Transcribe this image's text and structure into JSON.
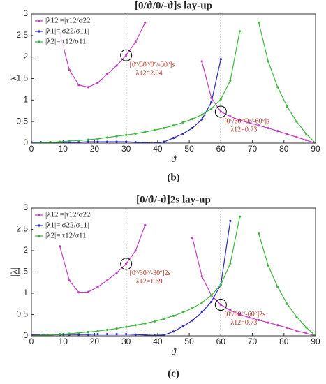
{
  "chart_data": [
    {
      "type": "line",
      "title": "[0/ϑ/0/-ϑ]s lay-up",
      "xlabel": "ϑ",
      "ylabel": "|λ|",
      "panel_label": "(b)",
      "x": [
        0,
        3,
        6,
        9,
        12,
        15,
        18,
        21,
        24,
        27,
        30,
        33,
        36,
        39,
        42,
        45,
        48,
        51,
        54,
        57,
        60,
        63,
        66,
        69,
        72,
        75,
        78,
        81,
        84,
        87,
        90
      ],
      "series": [
        {
          "name": "|λ12|=|τ12/σ22|",
          "color": "#c23ec2",
          "values": [
            null,
            null,
            null,
            2.55,
            1.7,
            1.35,
            1.3,
            1.4,
            1.6,
            1.8,
            2.04,
            2.35,
            2.8,
            null,
            null,
            null,
            null,
            null,
            1.9,
            1.05,
            0.73,
            0.62,
            0.53,
            0.47,
            0.41,
            0.35,
            0.28,
            0.21,
            0.14,
            0.07,
            0
          ]
        },
        {
          "name": "|λ1|=|σ22/σ11|",
          "color": "#2a2ab8",
          "values": [
            0.02,
            0.02,
            0.02,
            0.02,
            0.02,
            0.02,
            0.03,
            0.03,
            0.03,
            0.03,
            0.03,
            0.02,
            0.01,
            0,
            0.03,
            0.12,
            0.22,
            0.35,
            0.55,
            0.95,
            1.95,
            null,
            null,
            null,
            null,
            null,
            null,
            null,
            null,
            null,
            null
          ]
        },
        {
          "name": "|λ2|=|τ12/σ11|",
          "color": "#3cb83c",
          "values": [
            0,
            0.01,
            0.02,
            0.03,
            0.05,
            0.06,
            0.08,
            0.1,
            0.13,
            0.16,
            0.19,
            0.22,
            0.26,
            0.3,
            0.35,
            0.41,
            0.48,
            0.56,
            0.66,
            0.8,
            1.02,
            1.45,
            2.6,
            null,
            2.8,
            1.9,
            1.3,
            0.85,
            0.5,
            0.22,
            0
          ]
        }
      ],
      "annotations": [
        {
          "x": 30,
          "y": 2.04,
          "text": "[0º/30º/0º/-30º]s",
          "value_text": "λ12=2.04"
        },
        {
          "x": 60,
          "y": 0.73,
          "text": "[0º/60º/0º/-60º]s",
          "value_text": "λ12=0.73"
        }
      ],
      "xlim": [
        0,
        90
      ],
      "xticks": [
        0,
        10,
        20,
        30,
        40,
        50,
        60,
        70,
        80,
        90
      ],
      "ylim": [
        0,
        3
      ],
      "yticks": [
        0,
        0.5,
        1,
        1.5,
        2,
        2.5,
        3
      ],
      "legend": "upper left"
    },
    {
      "type": "line",
      "title": "[0/ϑ/-ϑ]2s lay-up",
      "xlabel": "ϑ",
      "ylabel": "|λ|",
      "panel_label": "(c)",
      "x": [
        0,
        3,
        6,
        9,
        12,
        15,
        18,
        21,
        24,
        27,
        30,
        33,
        36,
        39,
        42,
        45,
        48,
        51,
        54,
        57,
        60,
        63,
        66,
        69,
        72,
        75,
        78,
        81,
        84,
        87,
        90
      ],
      "series": [
        {
          "name": "|λ12|=|τ12/σ22|",
          "color": "#c23ec2",
          "values": [
            null,
            null,
            null,
            2.1,
            1.3,
            1.02,
            1.03,
            1.15,
            1.3,
            1.48,
            1.69,
            2.0,
            2.6,
            null,
            null,
            null,
            null,
            2.3,
            1.4,
            0.95,
            0.73,
            0.6,
            0.5,
            0.43,
            0.37,
            0.31,
            0.25,
            0.19,
            0.12,
            0.06,
            0
          ]
        },
        {
          "name": "|λ1|=|σ22/σ11|",
          "color": "#2a2ab8",
          "values": [
            0.02,
            0.02,
            0.02,
            0.03,
            0.03,
            0.03,
            0.03,
            0.04,
            0.04,
            0.04,
            0.04,
            0.03,
            0.02,
            0.01,
            0.02,
            0.1,
            0.22,
            0.36,
            0.55,
            0.8,
            1.2,
            2.7,
            null,
            null,
            null,
            null,
            null,
            null,
            null,
            null,
            null
          ]
        },
        {
          "name": "|λ2|=|τ12/σ11|",
          "color": "#3cb83c",
          "values": [
            0,
            0.01,
            0.02,
            0.04,
            0.05,
            0.07,
            0.09,
            0.11,
            0.14,
            0.17,
            0.21,
            0.25,
            0.29,
            0.34,
            0.4,
            0.47,
            0.55,
            0.65,
            0.78,
            0.95,
            1.2,
            1.7,
            2.8,
            null,
            2.4,
            1.65,
            1.15,
            0.75,
            0.45,
            0.2,
            0
          ]
        }
      ],
      "annotations": [
        {
          "x": 30,
          "y": 1.69,
          "text": "[0º/30º/-30º]2s",
          "value_text": "λ12=1.69"
        },
        {
          "x": 60,
          "y": 0.73,
          "text": "[0º/60º/-60º]2s",
          "value_text": "λ12=0.73"
        }
      ],
      "xlim": [
        0,
        90
      ],
      "xticks": [
        0,
        10,
        20,
        30,
        40,
        50,
        60,
        70,
        80,
        90
      ],
      "ylim": [
        0,
        3
      ],
      "yticks": [
        0,
        0.5,
        1,
        1.5,
        2,
        2.5,
        3
      ],
      "legend": "upper left"
    }
  ]
}
